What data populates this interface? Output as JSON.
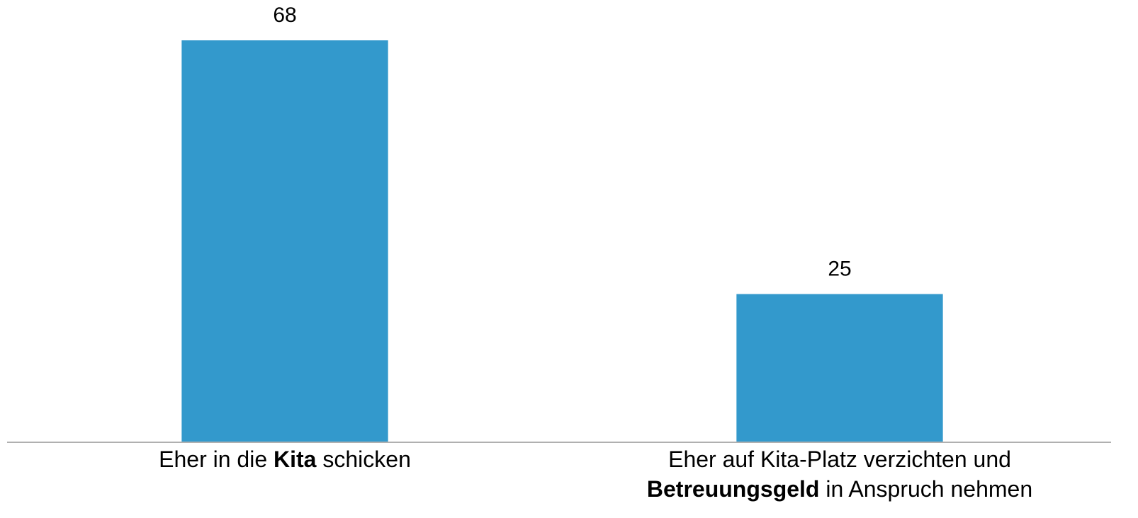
{
  "chart_data": {
    "type": "bar",
    "categories": [
      [
        [
          {
            "text": "Eher in die "
          },
          {
            "text": "Kita",
            "bold": true
          },
          {
            "text": " schicken"
          }
        ]
      ],
      [
        [
          {
            "text": "Eher auf Kita-Platz verzichten und"
          }
        ],
        [
          {
            "text": "Betreuungsgeld",
            "bold": true
          },
          {
            "text": " in Anspruch nehmen"
          }
        ]
      ]
    ],
    "values": [
      68,
      25
    ],
    "color": "#3399cc",
    "data_labels": true
  }
}
